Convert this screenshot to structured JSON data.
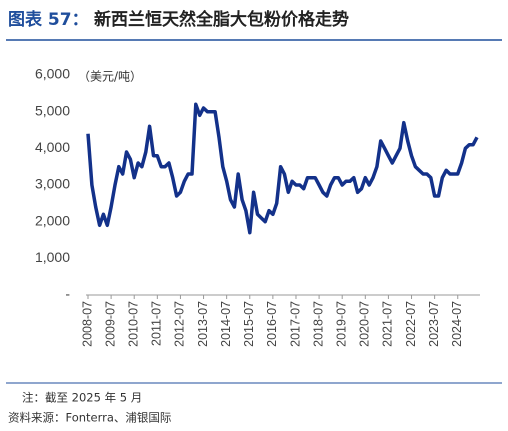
{
  "chart_data": {
    "type": "line",
    "label": "图表 57：",
    "title": "新西兰恒天然全脂大包粉价格走势",
    "y_label": "（美元/吨）",
    "note": "注：截至 2025 年 5 月",
    "source": "资料来源：Fonterra、浦银国际",
    "x": [
      "2008-07",
      "2008-09",
      "2008-11",
      "2009-01",
      "2009-03",
      "2009-05",
      "2009-07",
      "2009-09",
      "2009-11",
      "2010-01",
      "2010-03",
      "2010-05",
      "2010-07",
      "2010-09",
      "2010-11",
      "2011-01",
      "2011-03",
      "2011-05",
      "2011-07",
      "2011-09",
      "2011-11",
      "2012-01",
      "2012-03",
      "2012-05",
      "2012-07",
      "2012-09",
      "2012-11",
      "2013-01",
      "2013-03",
      "2013-05",
      "2013-07",
      "2013-09",
      "2013-11",
      "2014-01",
      "2014-03",
      "2014-05",
      "2014-07",
      "2014-09",
      "2014-11",
      "2015-01",
      "2015-03",
      "2015-05",
      "2015-07",
      "2015-09",
      "2015-11",
      "2016-01",
      "2016-03",
      "2016-05",
      "2016-07",
      "2016-09",
      "2016-11",
      "2017-01",
      "2017-03",
      "2017-05",
      "2017-07",
      "2017-09",
      "2017-11",
      "2018-01",
      "2018-03",
      "2018-05",
      "2018-07",
      "2018-09",
      "2018-11",
      "2019-01",
      "2019-03",
      "2019-05",
      "2019-07",
      "2019-09",
      "2019-11",
      "2020-01",
      "2020-03",
      "2020-05",
      "2020-07",
      "2020-09",
      "2020-11",
      "2021-01",
      "2021-03",
      "2021-05",
      "2021-07",
      "2021-09",
      "2021-11",
      "2022-01",
      "2022-03",
      "2022-05",
      "2022-07",
      "2022-09",
      "2022-11",
      "2023-01",
      "2023-03",
      "2023-05",
      "2023-07",
      "2023-09",
      "2023-11",
      "2024-01",
      "2024-03",
      "2024-05",
      "2024-07",
      "2024-09",
      "2024-11",
      "2025-01",
      "2025-03",
      "2025-05"
    ],
    "series": [
      {
        "color": "#13318a",
        "values": [
          4400,
          3000,
          2400,
          1900,
          2200,
          1900,
          2400,
          3000,
          3500,
          3300,
          3900,
          3700,
          3200,
          3600,
          3500,
          3900,
          4600,
          3800,
          3800,
          3500,
          3500,
          3600,
          3200,
          2700,
          2800,
          3100,
          3300,
          3300,
          5200,
          4900,
          5100,
          5000,
          5000,
          5000,
          4300,
          3500,
          3100,
          2600,
          2400,
          3300,
          2600,
          2300,
          1700,
          2800,
          2200,
          2100,
          2000,
          2300,
          2200,
          2500,
          3500,
          3300,
          2800,
          3100,
          3000,
          3000,
          2900,
          3200,
          3200,
          3200,
          3000,
          2800,
          2700,
          3000,
          3200,
          3200,
          3000,
          3100,
          3100,
          3200,
          2800,
          2900,
          3200,
          3000,
          3200,
          3500,
          4200,
          4000,
          3800,
          3600,
          3800,
          4000,
          4700,
          4200,
          3800,
          3500,
          3400,
          3300,
          3300,
          3200,
          2700,
          2700,
          3200,
          3400,
          3300,
          3300,
          3300,
          3600,
          4000,
          4100,
          4100,
          4300
        ]
      }
    ],
    "xlim": [
      "2008-07",
      "2025-05"
    ],
    "xticks": [
      "2008-07",
      "2009-07",
      "2010-07",
      "2011-07",
      "2012-07",
      "2013-07",
      "2014-07",
      "2015-07",
      "2016-07",
      "2017-07",
      "2018-07",
      "2019-07",
      "2020-07",
      "2021-07",
      "2022-07",
      "2023-07",
      "2024-07"
    ],
    "ylim": [
      0,
      6000
    ],
    "yticks": [
      {
        "value": 0,
        "label": "-"
      },
      {
        "value": 1000,
        "label": "1,000"
      },
      {
        "value": 2000,
        "label": "2,000"
      },
      {
        "value": 3000,
        "label": "3,000"
      },
      {
        "value": 4000,
        "label": "4,000"
      },
      {
        "value": 5000,
        "label": "5,000"
      },
      {
        "value": 6000,
        "label": "6,000"
      }
    ]
  }
}
